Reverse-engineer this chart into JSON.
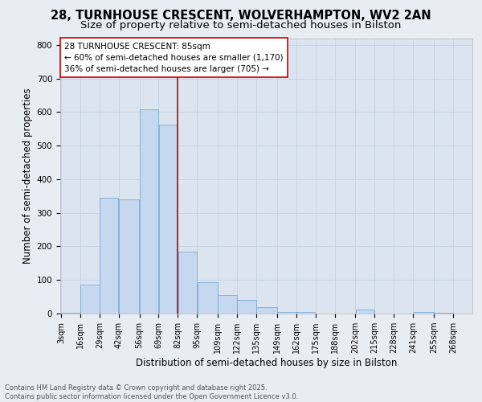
{
  "title_line1": "28, TURNHOUSE CRESCENT, WOLVERHAMPTON, WV2 2AN",
  "title_line2": "Size of property relative to semi-detached houses in Bilston",
  "xlabel": "Distribution of semi-detached houses by size in Bilston",
  "ylabel": "Number of semi-detached properties",
  "annotation_line1": "28 TURNHOUSE CRESCENT: 85sqm",
  "annotation_line2": "← 60% of semi-detached houses are smaller (1,170)",
  "annotation_line3": "36% of semi-detached houses are larger (705) →",
  "footer_line1": "Contains HM Land Registry data © Crown copyright and database right 2025.",
  "footer_line2": "Contains public sector information licensed under the Open Government Licence v3.0.",
  "bar_left_edges": [
    3,
    16,
    29,
    42,
    56,
    69,
    82,
    95,
    109,
    122,
    135,
    149,
    162,
    175,
    188,
    202,
    215,
    228,
    241,
    255
  ],
  "bar_widths": [
    13,
    13,
    13,
    14,
    13,
    13,
    13,
    14,
    13,
    13,
    14,
    13,
    13,
    13,
    14,
    13,
    13,
    13,
    14,
    13
  ],
  "bar_heights": [
    2,
    85,
    345,
    340,
    608,
    563,
    185,
    93,
    55,
    40,
    18,
    5,
    5,
    0,
    0,
    12,
    0,
    0,
    5,
    2
  ],
  "tick_labels": [
    "3sqm",
    "16sqm",
    "29sqm",
    "42sqm",
    "56sqm",
    "69sqm",
    "82sqm",
    "95sqm",
    "109sqm",
    "122sqm",
    "135sqm",
    "149sqm",
    "162sqm",
    "175sqm",
    "188sqm",
    "202sqm",
    "215sqm",
    "228sqm",
    "241sqm",
    "255sqm",
    "268sqm"
  ],
  "bar_color": "#c5d8ef",
  "bar_edge_color": "#6ea3cc",
  "vline_color": "#cc0000",
  "vline_x": 82,
  "annotation_box_color": "#cc0000",
  "background_color": "#e8edf4",
  "plot_bg_color": "#dce4f0",
  "ylim": [
    0,
    820
  ],
  "yticks": [
    0,
    100,
    200,
    300,
    400,
    500,
    600,
    700,
    800
  ],
  "grid_color": "#c8d4e4",
  "title_fontsize": 10.5,
  "subtitle_fontsize": 9.5,
  "axis_label_fontsize": 8.5,
  "tick_fontsize": 7,
  "annotation_fontsize": 7.5,
  "footer_fontsize": 6
}
